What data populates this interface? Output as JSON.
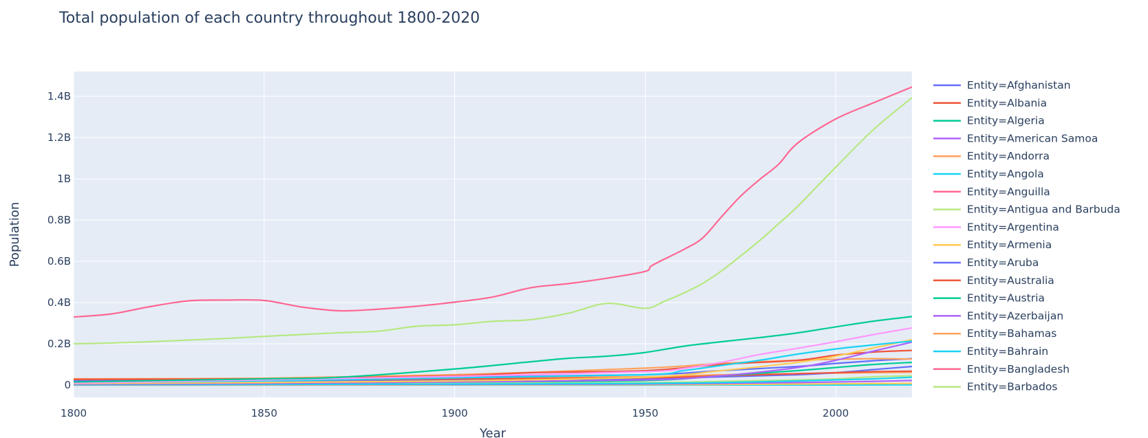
{
  "chart_data": {
    "type": "line",
    "title": "Total population of each country throughout 1800-2020",
    "xlabel": "Year",
    "ylabel": "Population",
    "xlim": [
      1800,
      2020
    ],
    "ylim": [
      -60000000,
      1520000000
    ],
    "x_ticks": [
      1800,
      1850,
      1900,
      1950,
      2000
    ],
    "x_tick_labels": [
      "1800",
      "1850",
      "1900",
      "1950",
      "2000"
    ],
    "y_ticks": [
      0,
      200000000,
      400000000,
      600000000,
      800000000,
      1000000000,
      1200000000,
      1400000000
    ],
    "y_tick_labels": [
      "0",
      "0.2B",
      "0.4B",
      "0.6B",
      "0.8B",
      "1B",
      "1.2B",
      "1.4B"
    ],
    "grid": true,
    "plot_background": "#e5ecf6",
    "legend_position": "right",
    "legend": [
      {
        "label": "Entity=Afghanistan",
        "color": "#636efa"
      },
      {
        "label": "Entity=Albania",
        "color": "#EF553B"
      },
      {
        "label": "Entity=Algeria",
        "color": "#00cc96"
      },
      {
        "label": "Entity=American Samoa",
        "color": "#ab63fa"
      },
      {
        "label": "Entity=Andorra",
        "color": "#FFA15A"
      },
      {
        "label": "Entity=Angola",
        "color": "#19d3f3"
      },
      {
        "label": "Entity=Anguilla",
        "color": "#FF6692"
      },
      {
        "label": "Entity=Antigua and Barbuda",
        "color": "#B6E880"
      },
      {
        "label": "Entity=Argentina",
        "color": "#FF97FF"
      },
      {
        "label": "Entity=Armenia",
        "color": "#FECB52"
      },
      {
        "label": "Entity=Aruba",
        "color": "#636efa"
      },
      {
        "label": "Entity=Australia",
        "color": "#EF553B"
      },
      {
        "label": "Entity=Austria",
        "color": "#00cc96"
      },
      {
        "label": "Entity=Azerbaijan",
        "color": "#ab63fa"
      },
      {
        "label": "Entity=Bahamas",
        "color": "#FFA15A"
      },
      {
        "label": "Entity=Bahrain",
        "color": "#19d3f3"
      },
      {
        "label": "Entity=Bangladesh",
        "color": "#FF6692"
      },
      {
        "label": "Entity=Barbados",
        "color": "#B6E880"
      }
    ],
    "series": [
      {
        "color": "#FF6692",
        "x": [
          1800,
          1810,
          1820,
          1830,
          1840,
          1850,
          1860,
          1870,
          1880,
          1890,
          1900,
          1910,
          1920,
          1930,
          1940,
          1950,
          1952,
          1960,
          1965,
          1970,
          1975,
          1980,
          1985,
          1990,
          2000,
          2010,
          2020
        ],
        "values": [
          330000000,
          345000000,
          380000000,
          408000000,
          412000000,
          410000000,
          378000000,
          360000000,
          368000000,
          382000000,
          402000000,
          427000000,
          472000000,
          492000000,
          518000000,
          551000000,
          582000000,
          656000000,
          712000000,
          815000000,
          915000000,
          996000000,
          1070000000,
          1173000000,
          1290000000,
          1369000000,
          1445000000
        ]
      },
      {
        "color": "#B6E880",
        "x": [
          1800,
          1810,
          1820,
          1830,
          1840,
          1850,
          1860,
          1870,
          1880,
          1890,
          1900,
          1910,
          1920,
          1930,
          1940,
          1950,
          1955,
          1960,
          1965,
          1970,
          1975,
          1980,
          1985,
          1990,
          2000,
          2010,
          2020
        ],
        "values": [
          200000000,
          204000000,
          210000000,
          218000000,
          226000000,
          236000000,
          245000000,
          254000000,
          261000000,
          285000000,
          292000000,
          309000000,
          317000000,
          349000000,
          396000000,
          372000000,
          406000000,
          445000000,
          492000000,
          553000000,
          625000000,
          700000000,
          782000000,
          866000000,
          1056000000,
          1240000000,
          1393000000
        ]
      },
      {
        "color": "#00cc96",
        "x": [
          1800,
          1850,
          1870,
          1900,
          1920,
          1930,
          1940,
          1950,
          1960,
          1970,
          1980,
          1990,
          2000,
          2010,
          2020
        ],
        "values": [
          15000000,
          30000000,
          38000000,
          78000000,
          113000000,
          130000000,
          140000000,
          158000000,
          188000000,
          210000000,
          230000000,
          253000000,
          282000000,
          310000000,
          332000000
        ]
      },
      {
        "color": "#FF97FF",
        "x": [
          1800,
          1850,
          1900,
          1950,
          1960,
          1970,
          1980,
          1990,
          2000,
          2010,
          2020
        ],
        "values": [
          10000000,
          25000000,
          42000000,
          65000000,
          80000000,
          110000000,
          148000000,
          178000000,
          210000000,
          245000000,
          277000000
        ]
      },
      {
        "color": "#19d3f3",
        "x": [
          1800,
          1850,
          1900,
          1950,
          1960,
          1970,
          1980,
          1990,
          2000,
          2010,
          2020
        ],
        "values": [
          12000000,
          20000000,
          35000000,
          50000000,
          70000000,
          95000000,
          120000000,
          150000000,
          175000000,
          195000000,
          213000000
        ]
      },
      {
        "color": "#FECB52",
        "x": [
          1800,
          1850,
          1900,
          1950,
          1970,
          1990,
          2000,
          2010,
          2020
        ],
        "values": [
          8000000,
          12000000,
          20000000,
          38000000,
          70000000,
          110000000,
          140000000,
          180000000,
          220000000
        ]
      },
      {
        "color": "#ab63fa",
        "x": [
          1800,
          1850,
          1900,
          1950,
          1970,
          1990,
          2000,
          2010,
          2020
        ],
        "values": [
          5000000,
          8000000,
          15000000,
          25000000,
          45000000,
          85000000,
          120000000,
          165000000,
          208000000
        ]
      },
      {
        "color": "#EF553B",
        "x": [
          1800,
          1850,
          1900,
          1920,
          1950,
          1970,
          1990,
          2000,
          2010,
          2020
        ],
        "values": [
          28000000,
          30000000,
          45000000,
          60000000,
          70000000,
          100000000,
          120000000,
          145000000,
          160000000,
          168000000
        ]
      },
      {
        "color": "#FFA15A",
        "x": [
          1800,
          1850,
          1900,
          1950,
          1970,
          1990,
          2000,
          2010,
          2020
        ],
        "values": [
          30000000,
          33000000,
          50000000,
          82000000,
          105000000,
          120000000,
          125000000,
          128000000,
          126000000
        ]
      },
      {
        "color": "#636efa",
        "x": [
          1800,
          1850,
          1900,
          1950,
          1970,
          1990,
          2000,
          2010,
          2020
        ],
        "values": [
          20000000,
          25000000,
          38000000,
          50000000,
          70000000,
          90000000,
          105000000,
          118000000,
          128000000
        ]
      },
      {
        "color": "#00cc96",
        "x": [
          1800,
          1850,
          1900,
          1950,
          1970,
          1990,
          2000,
          2010,
          2020
        ],
        "values": [
          5000000,
          8000000,
          15000000,
          22000000,
          45000000,
          70000000,
          85000000,
          100000000,
          110000000
        ]
      },
      {
        "color": "#EF553B",
        "x": [
          1800,
          1850,
          1900,
          1950,
          1970,
          1990,
          2000,
          2010,
          2020
        ],
        "values": [
          15000000,
          22000000,
          30000000,
          35000000,
          45000000,
          55000000,
          60000000,
          65000000,
          67000000
        ]
      },
      {
        "color": "#636efa",
        "x": [
          1800,
          1850,
          1900,
          1950,
          1970,
          1990,
          2000,
          2010,
          2020
        ],
        "values": [
          18000000,
          20000000,
          26000000,
          30000000,
          40000000,
          50000000,
          60000000,
          75000000,
          90000000
        ]
      },
      {
        "color": "#FFA15A",
        "x": [
          1800,
          1850,
          1900,
          1950,
          1970,
          1990,
          2000,
          2010,
          2020
        ],
        "values": [
          22000000,
          28000000,
          35000000,
          40000000,
          50000000,
          55000000,
          58000000,
          60000000,
          62000000
        ]
      },
      {
        "color": "#19d3f3",
        "x": [
          1800,
          1850,
          1900,
          1950,
          1970,
          1990,
          2000,
          2010,
          2020
        ],
        "values": [
          2000000,
          3000000,
          5000000,
          8000000,
          12000000,
          20000000,
          25000000,
          30000000,
          38000000
        ]
      },
      {
        "color": "#ab63fa",
        "x": [
          1800,
          1850,
          1900,
          1950,
          1970,
          1990,
          2000,
          2010,
          2020
        ],
        "values": [
          1000000,
          2000000,
          3000000,
          5000000,
          8000000,
          12000000,
          15000000,
          18000000,
          22000000
        ]
      },
      {
        "color": "#B6E880",
        "x": [
          1800,
          1850,
          1900,
          1950,
          1970,
          1990,
          2000,
          2010,
          2020
        ],
        "values": [
          3000000,
          5000000,
          8000000,
          12000000,
          18000000,
          25000000,
          30000000,
          40000000,
          45000000
        ]
      },
      {
        "color": "#FECB52",
        "x": [
          1800,
          1850,
          1900,
          1950,
          1970,
          1990,
          2000,
          2010,
          2020
        ],
        "values": [
          0,
          0,
          1000000,
          2000000,
          3000000,
          5000000,
          6000000,
          7000000,
          8000000
        ]
      },
      {
        "color": "#19d3f3",
        "x": [
          1800,
          1900,
          1950,
          2000,
          2020
        ],
        "values": [
          0,
          0,
          100000,
          500000,
          1000000
        ]
      }
    ]
  }
}
